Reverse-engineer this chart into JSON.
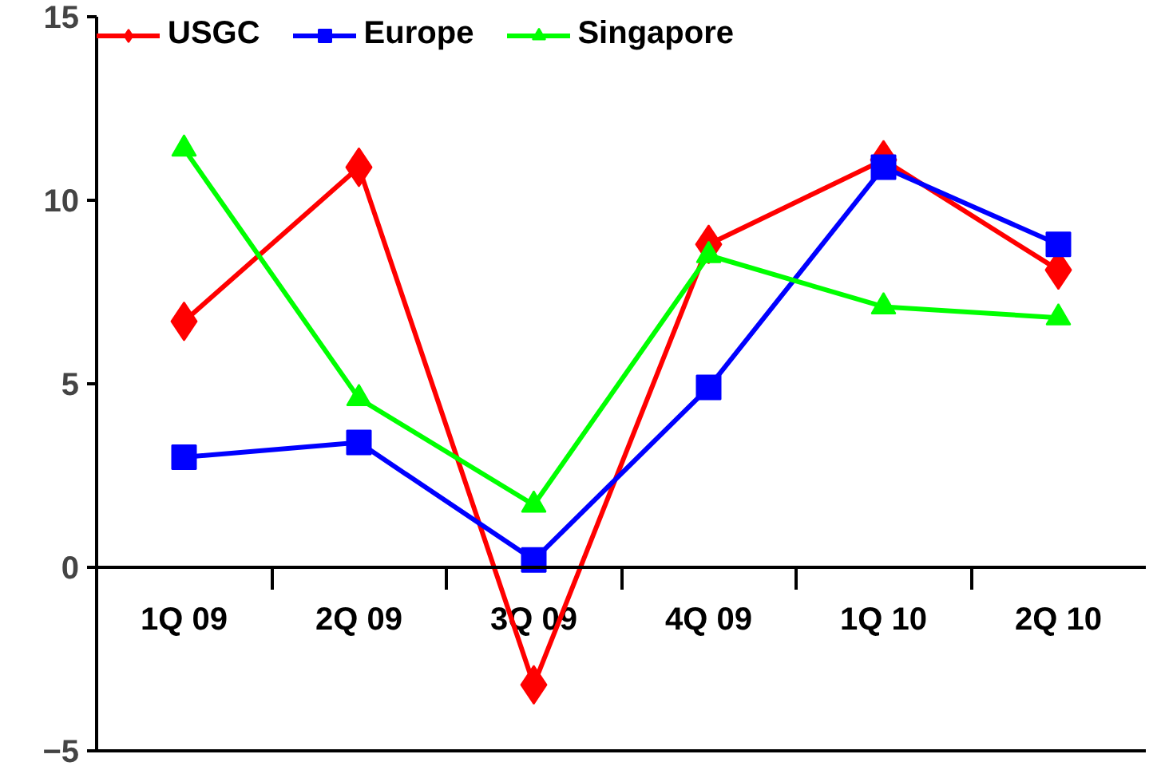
{
  "chart_data": {
    "type": "line",
    "categories": [
      "1Q 09",
      "2Q 09",
      "3Q 09",
      "4Q 09",
      "1Q 10",
      "2Q 10"
    ],
    "series": [
      {
        "name": "USGC",
        "color": "#ff0000",
        "marker": "diamond",
        "values": [
          6.7,
          10.9,
          -3.2,
          8.8,
          11.1,
          8.1
        ]
      },
      {
        "name": "Europe",
        "color": "#0000ff",
        "marker": "square",
        "values": [
          3.0,
          3.4,
          0.2,
          4.9,
          10.9,
          8.8
        ]
      },
      {
        "name": "Singapore",
        "color": "#00ff00",
        "marker": "triangle",
        "values": [
          11.4,
          4.6,
          1.7,
          8.5,
          7.1,
          6.8
        ]
      }
    ],
    "ylim": [
      -5,
      15
    ],
    "yticks": [
      -5,
      0,
      5,
      10,
      15
    ],
    "grid": false,
    "legend": "top",
    "line_style": "solid"
  }
}
